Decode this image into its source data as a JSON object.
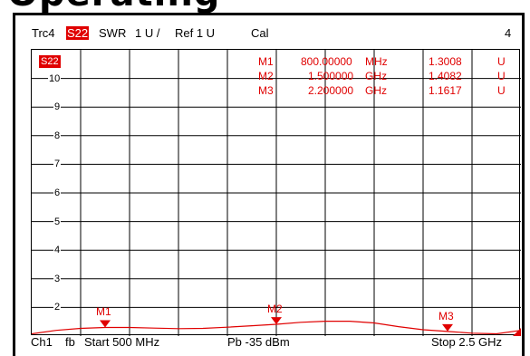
{
  "banner": {
    "text": "Operating"
  },
  "header": {
    "trace": "Trc4",
    "param": "S22",
    "format": "SWR",
    "scale": "1 U /",
    "ref": "Ref 1 U",
    "cal": "Cal",
    "channel_num": "4"
  },
  "trace_badge": "S22",
  "markers": [
    {
      "name": "M1",
      "freq": "800.00000",
      "unit": "MHz",
      "value": "1.3008",
      "vunit": "U"
    },
    {
      "name": "M2",
      "freq": "1.500000",
      "unit": "GHz",
      "value": "1.4082",
      "vunit": "U"
    },
    {
      "name": "M3",
      "freq": "2.200000",
      "unit": "GHz",
      "value": "1.1617",
      "vunit": "U"
    }
  ],
  "footer": {
    "channel": "Ch1",
    "mode": "fb",
    "start": "Start 500 MHz",
    "power": "Pb  -35 dBm",
    "stop": "Stop 2.5 GHz"
  },
  "colors": {
    "trace": "#e00000",
    "grid": "#000000",
    "background": "#ffffff"
  },
  "chart_data": {
    "type": "line",
    "x_unit": "GHz",
    "xlim": [
      0.5,
      2.5
    ],
    "ylim": [
      1,
      11
    ],
    "yticks": [
      2,
      3,
      4,
      5,
      6,
      7,
      8,
      9,
      10
    ],
    "ytick_labels": [
      "2",
      "3",
      "4",
      "5",
      "6",
      "7",
      "8",
      "9",
      "10"
    ],
    "grid": true,
    "series": [
      {
        "x": [
          0.5,
          0.6,
          0.7,
          0.8,
          0.9,
          1.0,
          1.1,
          1.2,
          1.3,
          1.4,
          1.5,
          1.6,
          1.7,
          1.8,
          1.9,
          2.0,
          2.1,
          2.2,
          2.3,
          2.4,
          2.5
        ],
        "y": [
          1.08,
          1.2,
          1.27,
          1.3,
          1.3,
          1.28,
          1.26,
          1.27,
          1.31,
          1.36,
          1.41,
          1.48,
          1.52,
          1.52,
          1.46,
          1.33,
          1.22,
          1.16,
          1.1,
          1.08,
          1.2
        ]
      }
    ],
    "markers": [
      {
        "label": "M1",
        "x": 0.8,
        "y": 1.3008
      },
      {
        "label": "M2",
        "x": 1.5,
        "y": 1.4082
      },
      {
        "label": "M3",
        "x": 2.2,
        "y": 1.1617
      }
    ]
  }
}
